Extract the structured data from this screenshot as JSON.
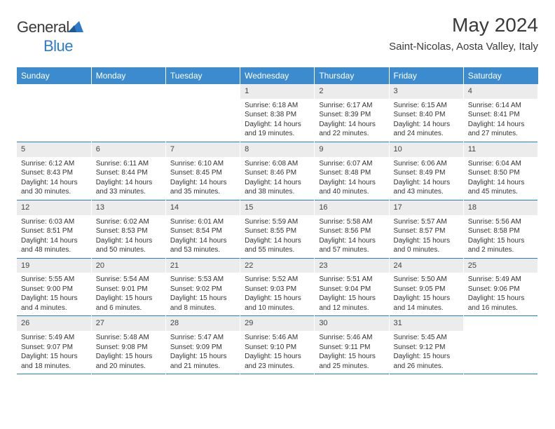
{
  "logo": {
    "text1": "General",
    "text2": "Blue"
  },
  "title": "May 2024",
  "location": "Saint-Nicolas, Aosta Valley, Italy",
  "colors": {
    "header_bg": "#3b8bce",
    "header_text": "#ffffff",
    "daynum_bg": "#ececec",
    "row_border": "#2c7ac9",
    "text": "#333333",
    "logo_blue": "#2c7ac9"
  },
  "typography": {
    "title_fontsize": 28,
    "location_fontsize": 15,
    "dayhead_fontsize": 12,
    "cell_fontsize": 10
  },
  "days_header": [
    "Sunday",
    "Monday",
    "Tuesday",
    "Wednesday",
    "Thursday",
    "Friday",
    "Saturday"
  ],
  "weeks": [
    [
      null,
      null,
      null,
      {
        "n": "1",
        "sr": "6:18 AM",
        "ss": "8:38 PM",
        "dl": "14 hours and 19 minutes."
      },
      {
        "n": "2",
        "sr": "6:17 AM",
        "ss": "8:39 PM",
        "dl": "14 hours and 22 minutes."
      },
      {
        "n": "3",
        "sr": "6:15 AM",
        "ss": "8:40 PM",
        "dl": "14 hours and 24 minutes."
      },
      {
        "n": "4",
        "sr": "6:14 AM",
        "ss": "8:41 PM",
        "dl": "14 hours and 27 minutes."
      }
    ],
    [
      {
        "n": "5",
        "sr": "6:12 AM",
        "ss": "8:43 PM",
        "dl": "14 hours and 30 minutes."
      },
      {
        "n": "6",
        "sr": "6:11 AM",
        "ss": "8:44 PM",
        "dl": "14 hours and 33 minutes."
      },
      {
        "n": "7",
        "sr": "6:10 AM",
        "ss": "8:45 PM",
        "dl": "14 hours and 35 minutes."
      },
      {
        "n": "8",
        "sr": "6:08 AM",
        "ss": "8:46 PM",
        "dl": "14 hours and 38 minutes."
      },
      {
        "n": "9",
        "sr": "6:07 AM",
        "ss": "8:48 PM",
        "dl": "14 hours and 40 minutes."
      },
      {
        "n": "10",
        "sr": "6:06 AM",
        "ss": "8:49 PM",
        "dl": "14 hours and 43 minutes."
      },
      {
        "n": "11",
        "sr": "6:04 AM",
        "ss": "8:50 PM",
        "dl": "14 hours and 45 minutes."
      }
    ],
    [
      {
        "n": "12",
        "sr": "6:03 AM",
        "ss": "8:51 PM",
        "dl": "14 hours and 48 minutes."
      },
      {
        "n": "13",
        "sr": "6:02 AM",
        "ss": "8:53 PM",
        "dl": "14 hours and 50 minutes."
      },
      {
        "n": "14",
        "sr": "6:01 AM",
        "ss": "8:54 PM",
        "dl": "14 hours and 53 minutes."
      },
      {
        "n": "15",
        "sr": "5:59 AM",
        "ss": "8:55 PM",
        "dl": "14 hours and 55 minutes."
      },
      {
        "n": "16",
        "sr": "5:58 AM",
        "ss": "8:56 PM",
        "dl": "14 hours and 57 minutes."
      },
      {
        "n": "17",
        "sr": "5:57 AM",
        "ss": "8:57 PM",
        "dl": "15 hours and 0 minutes."
      },
      {
        "n": "18",
        "sr": "5:56 AM",
        "ss": "8:58 PM",
        "dl": "15 hours and 2 minutes."
      }
    ],
    [
      {
        "n": "19",
        "sr": "5:55 AM",
        "ss": "9:00 PM",
        "dl": "15 hours and 4 minutes."
      },
      {
        "n": "20",
        "sr": "5:54 AM",
        "ss": "9:01 PM",
        "dl": "15 hours and 6 minutes."
      },
      {
        "n": "21",
        "sr": "5:53 AM",
        "ss": "9:02 PM",
        "dl": "15 hours and 8 minutes."
      },
      {
        "n": "22",
        "sr": "5:52 AM",
        "ss": "9:03 PM",
        "dl": "15 hours and 10 minutes."
      },
      {
        "n": "23",
        "sr": "5:51 AM",
        "ss": "9:04 PM",
        "dl": "15 hours and 12 minutes."
      },
      {
        "n": "24",
        "sr": "5:50 AM",
        "ss": "9:05 PM",
        "dl": "15 hours and 14 minutes."
      },
      {
        "n": "25",
        "sr": "5:49 AM",
        "ss": "9:06 PM",
        "dl": "15 hours and 16 minutes."
      }
    ],
    [
      {
        "n": "26",
        "sr": "5:49 AM",
        "ss": "9:07 PM",
        "dl": "15 hours and 18 minutes."
      },
      {
        "n": "27",
        "sr": "5:48 AM",
        "ss": "9:08 PM",
        "dl": "15 hours and 20 minutes."
      },
      {
        "n": "28",
        "sr": "5:47 AM",
        "ss": "9:09 PM",
        "dl": "15 hours and 21 minutes."
      },
      {
        "n": "29",
        "sr": "5:46 AM",
        "ss": "9:10 PM",
        "dl": "15 hours and 23 minutes."
      },
      {
        "n": "30",
        "sr": "5:46 AM",
        "ss": "9:11 PM",
        "dl": "15 hours and 25 minutes."
      },
      {
        "n": "31",
        "sr": "5:45 AM",
        "ss": "9:12 PM",
        "dl": "15 hours and 26 minutes."
      },
      null
    ]
  ],
  "labels": {
    "sunrise": "Sunrise: ",
    "sunset": "Sunset: ",
    "daylight": "Daylight: "
  }
}
